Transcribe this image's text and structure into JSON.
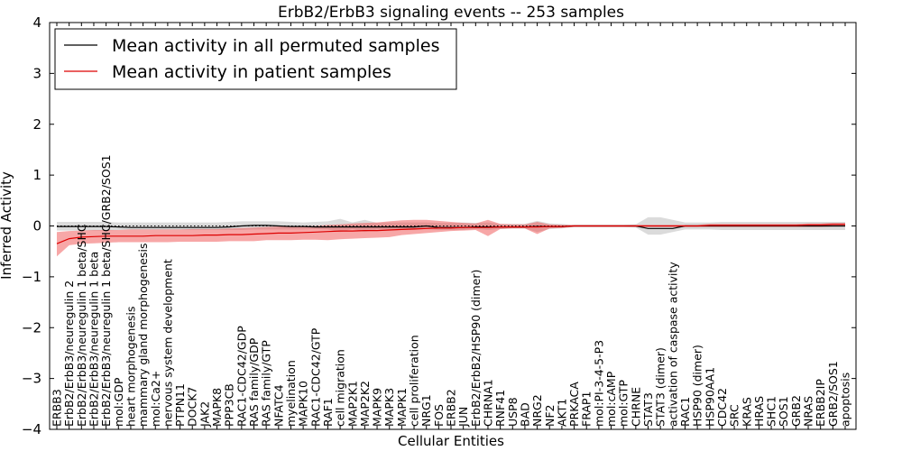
{
  "chart_data": {
    "type": "line",
    "title": "ErbB2/ErbB3 signaling events -- 253 samples",
    "xlabel": "Cellular Entities",
    "ylabel": "Inferred Activity",
    "ylim": [
      -4,
      4
    ],
    "yticks": [
      "4",
      "3",
      "2",
      "1",
      "0",
      "−1",
      "−2",
      "−3",
      "−4"
    ],
    "legend": {
      "placement": "top-left",
      "entries": [
        "Mean activity in all permuted samples",
        "Mean activity in patient samples"
      ]
    },
    "colors": {
      "permuted_line": "#000000",
      "permuted_band": "#b0b0b0",
      "patient_line": "#dd0000",
      "patient_band": "#f05050"
    },
    "categories": [
      "ERBB3",
      "ErbB2/ErbB3/neuregulin 2",
      "ErbB2/ErbB3/neuregulin 1 beta/SHC",
      "ErbB2/ErbB3/neuregulin 1 beta",
      "ErbB2/ErbB3/neuregulin 1 beta/SHC/GRB2/SOS1",
      "mol:GDP",
      "heart morphogenesis",
      "mammary gland morphogenesis",
      "mol:Ca2+",
      "nervous system development",
      "PTPN11",
      "DOCK7",
      "JAK2",
      "MAPK8",
      "PPP3CB",
      "RAC1-CDC42/GDP",
      "RAS family/GDP",
      "RAS family/GTP",
      "NFATC4",
      "myelination",
      "MAPK10",
      "RAC1-CDC42/GTP",
      "RAF1",
      "cell migration",
      "MAP2K1",
      "MAP2K2",
      "MAPK9",
      "MAPK3",
      "MAPK1",
      "cell proliferation",
      "NRG1",
      "FOS",
      "ERBB2",
      "JUN",
      "ErbB2/ErbB2/HSP90 (dimer)",
      "CHRNA1",
      "RNF41",
      "USP8",
      "BAD",
      "NRG2",
      "NF2",
      "AKT1",
      "PRKACA",
      "FRAP1",
      "mol:PI-3-4-5-P3",
      "mol:cAMP",
      "mol:GTP",
      "CHRNE",
      "STAT3",
      "STAT3 (dimer)",
      "activation of caspase activity",
      "RAC1",
      "HSP90 (dimer)",
      "HSP90AA1",
      "CDC42",
      "SRC",
      "KRAS",
      "HRAS",
      "SHC1",
      "SOS1",
      "GRB2",
      "NRAS",
      "ERBB2IP",
      "GRB2/SOS1",
      "apoptosis"
    ],
    "series": [
      {
        "name": "Mean activity in all permuted samples",
        "values": [
          -0.01,
          -0.01,
          -0.01,
          -0.01,
          -0.01,
          -0.02,
          -0.03,
          -0.03,
          -0.03,
          -0.03,
          -0.03,
          -0.03,
          -0.03,
          -0.03,
          -0.02,
          0.0,
          0.01,
          0.01,
          0.0,
          -0.01,
          -0.01,
          -0.02,
          -0.02,
          -0.02,
          -0.02,
          -0.02,
          -0.02,
          -0.02,
          -0.02,
          -0.02,
          0.0,
          -0.03,
          -0.03,
          -0.03,
          -0.02,
          -0.02,
          -0.02,
          -0.02,
          -0.02,
          -0.01,
          -0.01,
          -0.01,
          0.0,
          0.0,
          0.0,
          0.0,
          0.0,
          0.0,
          -0.05,
          -0.05,
          -0.05,
          0.0,
          0.0,
          0.0,
          0.0,
          0.0,
          0.0,
          0.0,
          0.0,
          0.0,
          0.0,
          0.0,
          0.0,
          0.0,
          0.0
        ],
        "lower": [
          -0.09,
          -0.09,
          -0.09,
          -0.09,
          -0.09,
          -0.08,
          -0.08,
          -0.08,
          -0.08,
          -0.08,
          -0.08,
          -0.08,
          -0.08,
          -0.08,
          -0.08,
          -0.08,
          -0.07,
          -0.07,
          -0.07,
          -0.07,
          -0.07,
          -0.06,
          -0.07,
          -0.12,
          -0.06,
          -0.12,
          -0.07,
          -0.08,
          -0.08,
          -0.08,
          -0.06,
          -0.08,
          -0.08,
          -0.08,
          -0.06,
          -0.08,
          -0.06,
          -0.05,
          -0.05,
          -0.12,
          -0.06,
          -0.05,
          -0.02,
          -0.02,
          -0.02,
          -0.02,
          -0.02,
          -0.03,
          -0.17,
          -0.17,
          -0.12,
          -0.07,
          -0.07,
          -0.07,
          -0.08,
          -0.08,
          -0.08,
          -0.08,
          -0.08,
          -0.08,
          -0.08,
          -0.08,
          -0.08,
          -0.08,
          -0.08
        ],
        "upper": [
          0.08,
          0.08,
          0.08,
          0.08,
          0.08,
          0.07,
          0.07,
          0.07,
          0.07,
          0.07,
          0.07,
          0.07,
          0.07,
          0.07,
          0.08,
          0.09,
          0.09,
          0.09,
          0.09,
          0.08,
          0.07,
          0.08,
          0.09,
          0.14,
          0.07,
          0.12,
          0.06,
          0.07,
          0.07,
          0.07,
          0.07,
          0.06,
          0.06,
          0.07,
          0.06,
          0.07,
          0.04,
          0.04,
          0.04,
          0.1,
          0.05,
          0.04,
          0.02,
          0.02,
          0.02,
          0.02,
          0.02,
          0.03,
          0.17,
          0.17,
          0.12,
          0.07,
          0.07,
          0.07,
          0.08,
          0.08,
          0.08,
          0.08,
          0.08,
          0.08,
          0.08,
          0.08,
          0.08,
          0.08,
          0.08
        ]
      },
      {
        "name": "Mean activity in patient samples",
        "values": [
          -0.35,
          -0.25,
          -0.22,
          -0.21,
          -0.2,
          -0.2,
          -0.2,
          -0.2,
          -0.19,
          -0.19,
          -0.19,
          -0.19,
          -0.18,
          -0.18,
          -0.17,
          -0.17,
          -0.16,
          -0.15,
          -0.14,
          -0.14,
          -0.13,
          -0.12,
          -0.11,
          -0.1,
          -0.1,
          -0.09,
          -0.09,
          -0.08,
          -0.07,
          -0.06,
          -0.05,
          -0.04,
          -0.04,
          -0.03,
          -0.03,
          -0.03,
          -0.02,
          -0.02,
          -0.02,
          -0.02,
          -0.01,
          -0.01,
          0.0,
          0.0,
          0.0,
          0.0,
          0.0,
          0.0,
          0.0,
          0.0,
          0.0,
          0.0,
          0.0,
          0.01,
          0.01,
          0.01,
          0.01,
          0.01,
          0.01,
          0.01,
          0.01,
          0.02,
          0.02,
          0.03,
          0.03
        ],
        "lower": [
          -0.6,
          -0.38,
          -0.35,
          -0.34,
          -0.33,
          -0.32,
          -0.32,
          -0.32,
          -0.32,
          -0.32,
          -0.31,
          -0.31,
          -0.31,
          -0.31,
          -0.3,
          -0.3,
          -0.3,
          -0.28,
          -0.28,
          -0.28,
          -0.27,
          -0.27,
          -0.28,
          -0.26,
          -0.25,
          -0.24,
          -0.23,
          -0.22,
          -0.18,
          -0.16,
          -0.14,
          -0.12,
          -0.1,
          -0.09,
          -0.08,
          -0.2,
          -0.06,
          -0.05,
          -0.05,
          -0.16,
          -0.05,
          -0.04,
          -0.02,
          -0.02,
          -0.02,
          -0.02,
          -0.02,
          -0.02,
          -0.02,
          -0.02,
          -0.02,
          -0.02,
          -0.02,
          -0.02,
          -0.02,
          -0.02,
          -0.02,
          -0.02,
          -0.02,
          -0.02,
          -0.02,
          -0.02,
          -0.02,
          -0.01,
          -0.01
        ],
        "upper": [
          -0.12,
          -0.1,
          -0.09,
          -0.08,
          -0.08,
          -0.08,
          -0.07,
          -0.07,
          -0.07,
          -0.07,
          -0.07,
          -0.06,
          -0.06,
          -0.06,
          -0.05,
          -0.04,
          -0.03,
          -0.02,
          -0.01,
          0.0,
          0.0,
          0.0,
          0.02,
          0.03,
          0.05,
          0.06,
          0.07,
          0.09,
          0.11,
          0.12,
          0.12,
          0.1,
          0.08,
          0.06,
          0.05,
          0.12,
          0.04,
          0.03,
          0.03,
          0.08,
          0.03,
          0.02,
          0.02,
          0.02,
          0.02,
          0.02,
          0.02,
          0.02,
          0.02,
          0.02,
          0.02,
          0.02,
          0.02,
          0.04,
          0.04,
          0.04,
          0.04,
          0.04,
          0.04,
          0.04,
          0.04,
          0.05,
          0.05,
          0.06,
          0.06
        ]
      }
    ]
  }
}
